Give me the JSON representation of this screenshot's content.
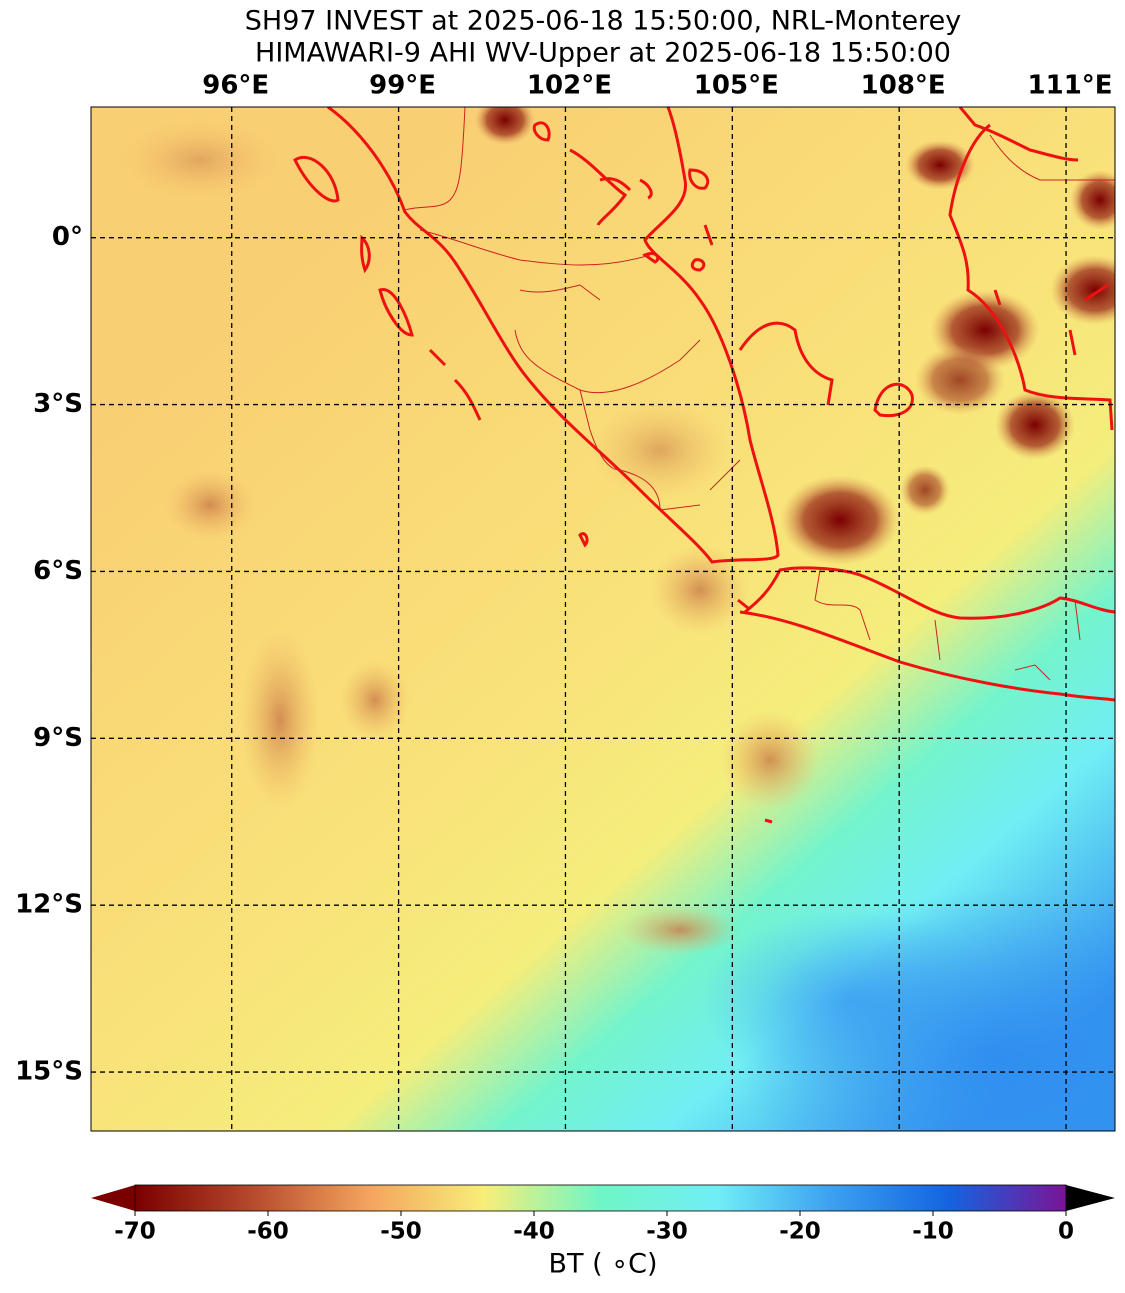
{
  "map": {
    "title": [
      "SH97 INVEST at 2025-06-18 15:50:00, NRL-Monterey",
      "HIMAWARI-9 AHI WV-Upper at 2025-06-18 15:50:00"
    ],
    "xlim": [
      93.47,
      111.88
    ],
    "ylim": [
      -16.06,
      2.35
    ],
    "xticks": [
      {
        "value": 96,
        "label": "96°E"
      },
      {
        "value": 99,
        "label": "99°E"
      },
      {
        "value": 102,
        "label": "102°E"
      },
      {
        "value": 105,
        "label": "105°E"
      },
      {
        "value": 108,
        "label": "108°E"
      },
      {
        "value": 111,
        "label": "111°E"
      }
    ],
    "yticks": [
      {
        "value": 0,
        "label": "0°"
      },
      {
        "value": -3,
        "label": "3°S"
      },
      {
        "value": -6,
        "label": "6°S"
      },
      {
        "value": -9,
        "label": "9°S"
      },
      {
        "value": -12,
        "label": "12°S"
      },
      {
        "value": -15,
        "label": "15°S"
      }
    ],
    "grid": true,
    "colorbar": {
      "label": "BT ( ∘C)",
      "lim": [
        -70,
        0
      ],
      "ticks": [
        -70,
        -60,
        -50,
        -40,
        -30,
        -20,
        -10,
        0
      ],
      "colors": [
        "#7a0000",
        "#b5492c",
        "#f3a35e",
        "#f8ee78",
        "#6ff6c6",
        "#70eef6",
        "#3aa0f0",
        "#1463e0",
        "#7a1496"
      ],
      "under_color": "#7a0000",
      "over_color": "#000000"
    }
  }
}
